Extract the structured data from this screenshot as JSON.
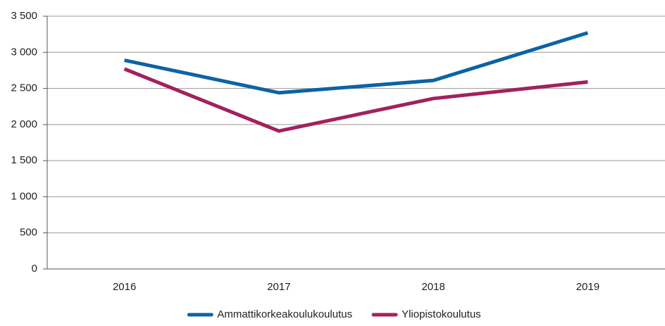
{
  "chart_data": {
    "type": "line",
    "categories": [
      "2016",
      "2017",
      "2018",
      "2019"
    ],
    "series": [
      {
        "name": "Ammattikorkeakoulukoulutus",
        "color": "#0c63a4",
        "values": [
          2890,
          2440,
          2610,
          3270
        ]
      },
      {
        "name": "Yliopistokoulutus",
        "color": "#a2215e",
        "values": [
          2770,
          1910,
          2360,
          2590
        ]
      }
    ],
    "ylim": [
      0,
      3500
    ],
    "yticks": [
      0,
      500,
      {
        "value": 1000,
        "label": "1 000"
      },
      {
        "value": 1500,
        "label": "1 500"
      },
      {
        "value": 2000,
        "label": "2 000"
      },
      {
        "value": 2500,
        "label": "2 500"
      },
      {
        "value": 3000,
        "label": "3 000"
      },
      {
        "value": 3500,
        "label": "3 500"
      }
    ],
    "grid": true,
    "legend": "bottom"
  }
}
